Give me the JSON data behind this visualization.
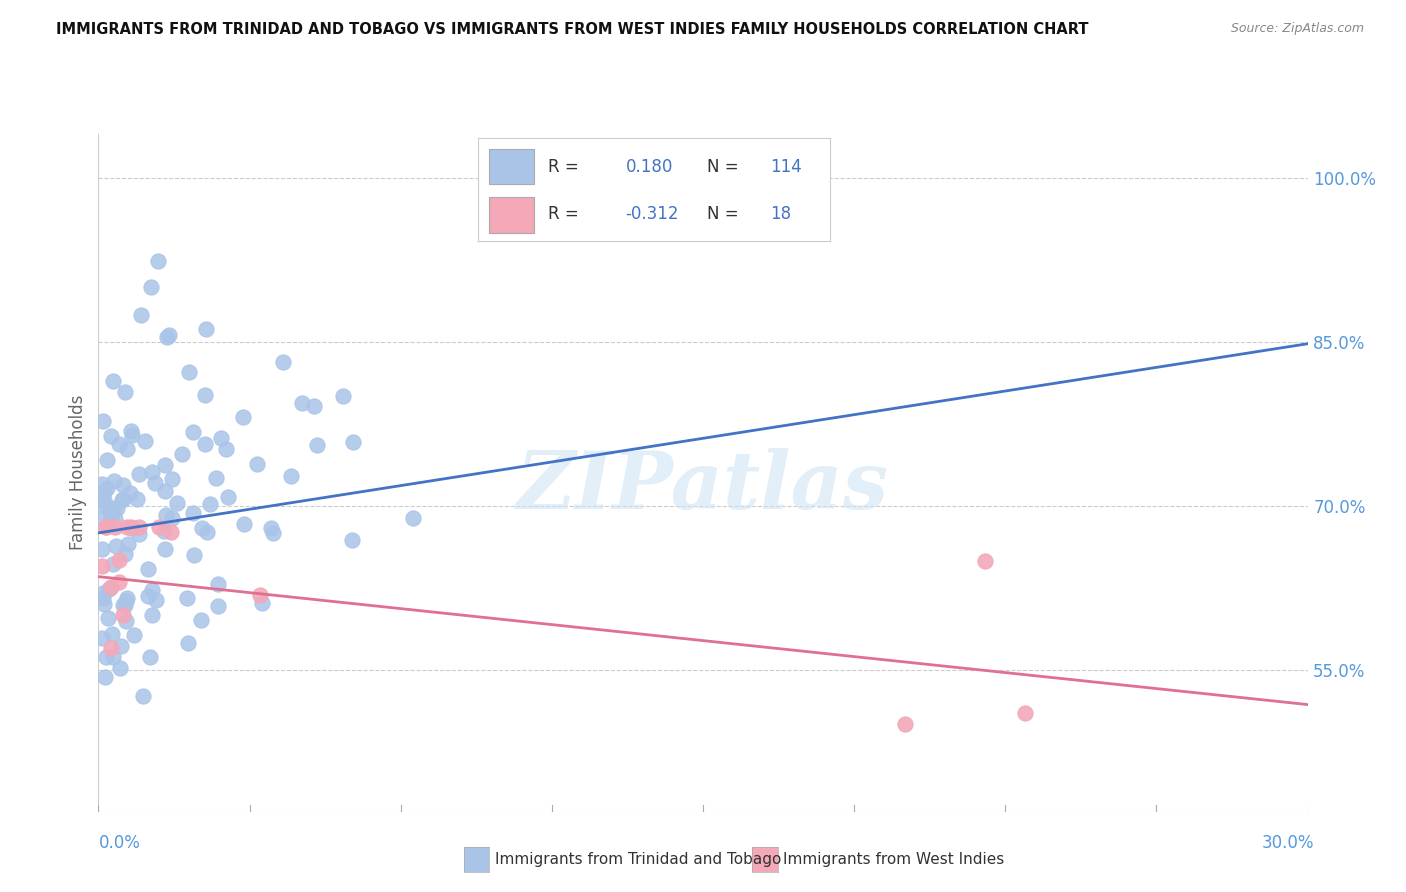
{
  "title": "IMMIGRANTS FROM TRINIDAD AND TOBAGO VS IMMIGRANTS FROM WEST INDIES FAMILY HOUSEHOLDS CORRELATION CHART",
  "source": "Source: ZipAtlas.com",
  "ylabel": "Family Households",
  "ytick_labels": [
    "100.0%",
    "85.0%",
    "70.0%",
    "55.0%"
  ],
  "ytick_values": [
    1.0,
    0.85,
    0.7,
    0.55
  ],
  "xmin": 0.0,
  "xmax": 0.3,
  "ymin": 0.42,
  "ymax": 1.04,
  "blue_color": "#aac4e8",
  "blue_line_color": "#4472c4",
  "pink_color": "#f4a8b8",
  "pink_line_color": "#e07090",
  "footer_label1": "Immigrants from Trinidad and Tobago",
  "footer_label2": "Immigrants from West Indies",
  "watermark": "ZIPatlas",
  "blue_line_x": [
    0.0,
    0.3
  ],
  "blue_line_y": [
    0.675,
    0.848
  ],
  "pink_line_x": [
    0.0,
    0.3
  ],
  "pink_line_y": [
    0.635,
    0.518
  ]
}
